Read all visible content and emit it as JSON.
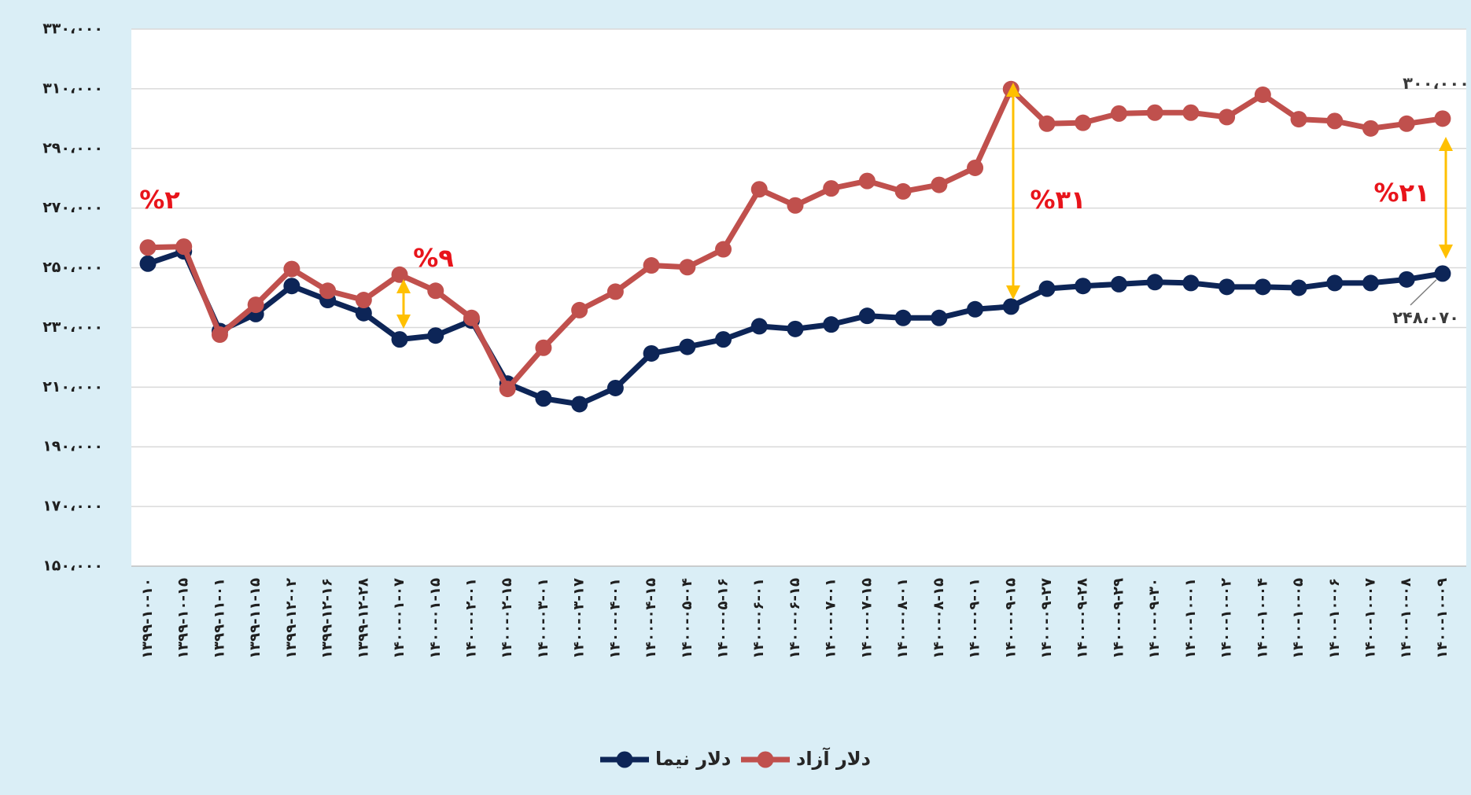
{
  "chart_data": {
    "type": "line",
    "categories": [
      "۱۳۹۹-۱۰-۱۰",
      "۱۳۹۹-۱۰-۱۵",
      "۱۳۹۹-۱۱-۰۱",
      "۱۳۹۹-۱۱-۱۵",
      "۱۳۹۹-۱۲-۰۲",
      "۱۳۹۹-۱۲-۱۶",
      "۱۳۹۹-۱۲-۲۸",
      "۱۴۰۰-۰۱-۰۷",
      "۱۴۰۰-۰۱-۱۵",
      "۱۴۰۰-۰۲-۰۱",
      "۱۴۰۰-۰۲-۱۵",
      "۱۴۰۰-۰۳-۰۱",
      "۱۴۰۰-۰۳-۱۷",
      "۱۴۰۰-۰۴-۰۱",
      "۱۴۰۰-۰۴-۱۵",
      "۱۴۰۰-۰۵-۰۴",
      "۱۴۰۰-۰۵-۱۶",
      "۱۴۰۰-۰۶-۰۱",
      "۱۴۰۰-۰۶-۱۵",
      "۱۴۰۰-۰۷-۰۱",
      "۱۴۰۰-۰۷-۱۵",
      "۱۴۰۰-۰۸-۰۱",
      "۱۴۰۰-۰۸-۱۵",
      "۱۴۰۰-۰۹-۰۱",
      "۱۴۰۰-۰۹-۱۵",
      "۱۴۰۰-۰۹-۲۷",
      "۱۴۰۰-۰۹-۲۸",
      "۱۴۰۰-۰۹-۲۹",
      "۱۴۰۰-۰۹-۳۰",
      "۱۴۰۰-۱۰-۰۱",
      "۱۴۰۰-۱۰-۰۲",
      "۱۴۰۰-۱۰-۰۴",
      "۱۴۰۰-۱۰-۰۵",
      "۱۴۰۰-۱۰-۰۶",
      "۱۴۰۰-۱۰-۰۷",
      "۱۴۰۰-۱۰-۰۸",
      "۱۴۰۰-۱۰-۰۹"
    ],
    "series": [
      {
        "name": "دلار نیما",
        "color": "#0d2557",
        "values": [
          251400,
          255500,
          228800,
          234500,
          243900,
          239200,
          234800,
          226000,
          227300,
          232300,
          211200,
          206200,
          204300,
          209700,
          221300,
          223500,
          226000,
          230400,
          229500,
          231000,
          233900,
          233200,
          233200,
          236100,
          237000,
          243000,
          243900,
          244500,
          245200,
          244900,
          243600,
          243600,
          243300,
          244900,
          244900,
          246100,
          248070
        ],
        "value_labels": [
          null,
          null,
          null,
          null,
          null,
          null,
          null,
          null,
          null,
          null,
          null,
          null,
          null,
          null,
          null,
          null,
          null,
          null,
          null,
          null,
          null,
          null,
          null,
          null,
          null,
          null,
          null,
          null,
          null,
          null,
          null,
          null,
          null,
          null,
          null,
          null,
          "۲۴۸،۰۷۰"
        ]
      },
      {
        "name": "دلار آزاد",
        "color": "#c0504d",
        "values": [
          256800,
          257100,
          227600,
          237600,
          249600,
          242300,
          239200,
          247700,
          242300,
          233200,
          209400,
          223200,
          235800,
          242000,
          250800,
          250200,
          256200,
          276300,
          270900,
          276600,
          279100,
          275600,
          277800,
          283500,
          309900,
          298300,
          298600,
          301700,
          302000,
          302000,
          300500,
          308000,
          299800,
          299200,
          296700,
          298300,
          300000
        ],
        "value_labels": [
          null,
          null,
          null,
          null,
          null,
          null,
          null,
          null,
          null,
          null,
          null,
          null,
          null,
          null,
          null,
          null,
          null,
          null,
          null,
          null,
          null,
          null,
          null,
          null,
          null,
          null,
          null,
          null,
          null,
          null,
          null,
          null,
          null,
          null,
          null,
          null,
          "۳۰۰،۰۰۰"
        ]
      }
    ],
    "annotations": [
      "%۲",
      "%۹",
      "%۳۱",
      "%۲۱"
    ],
    "ylim": [
      150000,
      330000
    ],
    "yticks": [
      {
        "value": 150000,
        "label": "۱۵۰،۰۰۰"
      },
      {
        "value": 170000,
        "label": "۱۷۰،۰۰۰"
      },
      {
        "value": 190000,
        "label": "۱۹۰،۰۰۰"
      },
      {
        "value": 210000,
        "label": "۲۱۰،۰۰۰"
      },
      {
        "value": 230000,
        "label": "۲۳۰،۰۰۰"
      },
      {
        "value": 250000,
        "label": "۲۵۰،۰۰۰"
      },
      {
        "value": 270000,
        "label": "۲۷۰،۰۰۰"
      },
      {
        "value": 290000,
        "label": "۲۹۰،۰۰۰"
      },
      {
        "value": 310000,
        "label": "۳۱۰،۰۰۰"
      },
      {
        "value": 330000,
        "label": "۳۳۰،۰۰۰"
      }
    ],
    "grid": true
  }
}
